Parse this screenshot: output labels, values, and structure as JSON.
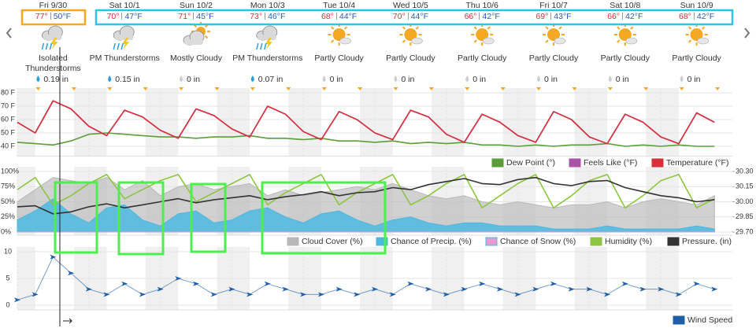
{
  "days": [
    {
      "date": "Fri 9/30",
      "hi": "77°",
      "lo": "50°F",
      "condition": "Isolated Thunderstorms",
      "precip": "0.19 in"
    },
    {
      "date": "Sat 10/1",
      "hi": "70°",
      "lo": "47°F",
      "condition": "PM Thunderstorms",
      "precip": "0.15 in"
    },
    {
      "date": "Sun 10/2",
      "hi": "71°",
      "lo": "45°F",
      "condition": "Mostly Cloudy",
      "precip": "0 in"
    },
    {
      "date": "Mon 10/3",
      "hi": "73°",
      "lo": "46°F",
      "condition": "PM Thunderstorms",
      "precip": "0.07 in"
    },
    {
      "date": "Tue 10/4",
      "hi": "68°",
      "lo": "44°F",
      "condition": "Partly Cloudy",
      "precip": "0 in"
    },
    {
      "date": "Wed 10/5",
      "hi": "70°",
      "lo": "44°F",
      "condition": "Partly Cloudy",
      "precip": "0 in"
    },
    {
      "date": "Thu 10/6",
      "hi": "66°",
      "lo": "42°F",
      "condition": "Partly Cloudy",
      "precip": "0 in"
    },
    {
      "date": "Fri 10/7",
      "hi": "69°",
      "lo": "43°F",
      "condition": "Partly Cloudy",
      "precip": "0 in"
    },
    {
      "date": "Sat 10/8",
      "hi": "66°",
      "lo": "42°F",
      "condition": "Partly Cloudy",
      "precip": "0 in"
    },
    {
      "date": "Sun 10/9",
      "hi": "68°",
      "lo": "42°F",
      "condition": "Partly Cloudy",
      "precip": "0 in"
    }
  ],
  "chart_data": [
    {
      "type": "line",
      "grid": true,
      "xlim": [
        0,
        240
      ],
      "ylim": [
        35,
        80
      ],
      "yticks": [
        {
          "value": 40,
          "label": "40 F"
        },
        {
          "value": 50,
          "label": "50 F"
        },
        {
          "value": 60,
          "label": "60 F"
        },
        {
          "value": 70,
          "label": "70 F"
        },
        {
          "value": 80,
          "label": "80 F"
        }
      ],
      "x": [
        0,
        6,
        12,
        18,
        24,
        30,
        36,
        42,
        48,
        54,
        60,
        66,
        72,
        78,
        84,
        90,
        96,
        102,
        108,
        114,
        120,
        126,
        132,
        138,
        144,
        150,
        156,
        162,
        168,
        174,
        180,
        186,
        192,
        198,
        204,
        210,
        216,
        222,
        228,
        234
      ],
      "series": [
        {
          "name": "Dew Point (°)",
          "color": "#5a9e3a",
          "values": [
            43,
            42,
            41,
            44,
            49,
            50,
            49,
            48,
            47,
            47,
            46,
            47,
            47,
            48,
            46,
            46,
            45,
            46,
            44,
            44,
            43,
            44,
            42,
            43,
            42,
            43,
            41,
            41,
            40,
            41,
            40,
            41,
            41,
            42,
            40,
            41,
            40,
            41,
            40,
            40
          ]
        },
        {
          "name": "Feels Like (°F)",
          "color": "#a855a8",
          "values": [
            58,
            50,
            74,
            68,
            55,
            48,
            67,
            62,
            52,
            46,
            68,
            63,
            53,
            47,
            70,
            64,
            51,
            45,
            66,
            60,
            50,
            45,
            67,
            62,
            49,
            43,
            64,
            58,
            48,
            43,
            66,
            60,
            47,
            42,
            64,
            58,
            47,
            42,
            65,
            58
          ]
        },
        {
          "name": "Temperature (°F)",
          "color": "#d6303a",
          "values": [
            58,
            50,
            74,
            68,
            55,
            48,
            67,
            62,
            52,
            46,
            68,
            63,
            53,
            47,
            70,
            64,
            51,
            45,
            66,
            60,
            50,
            45,
            67,
            62,
            49,
            43,
            64,
            58,
            48,
            43,
            66,
            60,
            47,
            42,
            64,
            58,
            47,
            42,
            65,
            58
          ]
        }
      ]
    },
    {
      "type": "combo",
      "grid": true,
      "xlim": [
        0,
        240
      ],
      "ylim": [
        0,
        100
      ],
      "yticks": [
        {
          "value": 0,
          "label": "0%"
        },
        {
          "value": 25,
          "label": "25%"
        },
        {
          "value": 50,
          "label": "50%"
        },
        {
          "value": 75,
          "label": "75%"
        },
        {
          "value": 100,
          "label": "100%"
        }
      ],
      "y2lim": [
        29.7,
        30.3
      ],
      "y2ticks": [
        {
          "value": 29.7,
          "label": "29.70"
        },
        {
          "value": 29.85,
          "label": "29.85"
        },
        {
          "value": 30,
          "label": "30.00"
        },
        {
          "value": 30.15,
          "label": "30.15"
        },
        {
          "value": 30.3,
          "label": "30.30"
        }
      ],
      "x": [
        0,
        6,
        12,
        18,
        24,
        30,
        36,
        42,
        48,
        54,
        60,
        66,
        72,
        78,
        84,
        90,
        96,
        102,
        108,
        114,
        120,
        126,
        132,
        138,
        144,
        150,
        156,
        162,
        168,
        174,
        180,
        186,
        192,
        198,
        204,
        210,
        216,
        222,
        228,
        234
      ],
      "series": [
        {
          "name": "Cloud Cover (%)",
          "color": "#b8b8b8",
          "style": "area",
          "values": [
            50,
            70,
            90,
            85,
            80,
            90,
            70,
            85,
            60,
            75,
            80,
            70,
            75,
            80,
            60,
            70,
            60,
            65,
            70,
            75,
            70,
            80,
            70,
            60,
            55,
            60,
            50,
            45,
            50,
            45,
            40,
            45,
            45,
            50,
            40,
            50,
            55,
            50,
            45,
            60
          ]
        },
        {
          "name": "Chance of Precip. (%)",
          "color": "#4db8e0",
          "style": "area",
          "values": [
            20,
            35,
            55,
            30,
            15,
            40,
            45,
            20,
            10,
            30,
            35,
            15,
            20,
            35,
            40,
            25,
            15,
            30,
            35,
            20,
            10,
            20,
            25,
            15,
            10,
            15,
            15,
            10,
            10,
            10,
            5,
            5,
            5,
            10,
            5,
            5,
            5,
            5,
            10,
            5
          ]
        },
        {
          "name": "Chance of Snow (%)",
          "color": "#e59ad0",
          "style": "area",
          "values": [
            0,
            0,
            0,
            0,
            0,
            0,
            0,
            0,
            0,
            0,
            0,
            0,
            0,
            0,
            0,
            0,
            0,
            0,
            0,
            0,
            0,
            0,
            0,
            0,
            0,
            0,
            0,
            0,
            0,
            0,
            0,
            0,
            0,
            0,
            0,
            0,
            0,
            0,
            0,
            0
          ]
        },
        {
          "name": "Humidity (%)",
          "color": "#8cc63f",
          "style": "line",
          "values": [
            70,
            90,
            45,
            60,
            80,
            95,
            55,
            70,
            85,
            95,
            50,
            65,
            80,
            95,
            45,
            65,
            80,
            95,
            45,
            65,
            80,
            95,
            45,
            60,
            80,
            95,
            40,
            60,
            80,
            95,
            40,
            60,
            85,
            95,
            40,
            60,
            85,
            95,
            40,
            55
          ]
        },
        {
          "name": "Pressure. (in)",
          "color": "#333333",
          "style": "line",
          "axis": "y2",
          "values": [
            29.95,
            29.96,
            29.88,
            29.9,
            29.95,
            29.98,
            29.94,
            29.97,
            30,
            30.03,
            29.99,
            30.02,
            30.04,
            30.06,
            30.02,
            30.05,
            30.07,
            30.1,
            30.06,
            30.09,
            30.1,
            30.14,
            30.12,
            30.17,
            30.2,
            30.23,
            30.18,
            30.17,
            30.22,
            30.24,
            30.18,
            30.16,
            30.2,
            30.21,
            30.14,
            30.1,
            30.06,
            30.04,
            30,
            30.02
          ]
        }
      ]
    },
    {
      "type": "line",
      "grid": true,
      "markers": true,
      "xlim": [
        0,
        240
      ],
      "ylim": [
        0,
        10
      ],
      "yticks": [
        0,
        5,
        10
      ],
      "x": [
        0,
        6,
        12,
        18,
        24,
        30,
        36,
        42,
        48,
        54,
        60,
        66,
        72,
        78,
        84,
        90,
        96,
        102,
        108,
        114,
        120,
        126,
        132,
        138,
        144,
        150,
        156,
        162,
        168,
        174,
        180,
        186,
        192,
        198,
        204,
        210,
        216,
        222,
        228,
        234
      ],
      "series": [
        {
          "name": "Wind Speed",
          "color": "#1f5fa8",
          "values": [
            1,
            2,
            9,
            6,
            3,
            2,
            4,
            2,
            3,
            5,
            4,
            2,
            3,
            2,
            4,
            3,
            2,
            2,
            3,
            2,
            3,
            2,
            4,
            3,
            2,
            3,
            4,
            3,
            2,
            3,
            4,
            3,
            3,
            2,
            4,
            3,
            3,
            2,
            4,
            3
          ]
        }
      ]
    }
  ]
}
